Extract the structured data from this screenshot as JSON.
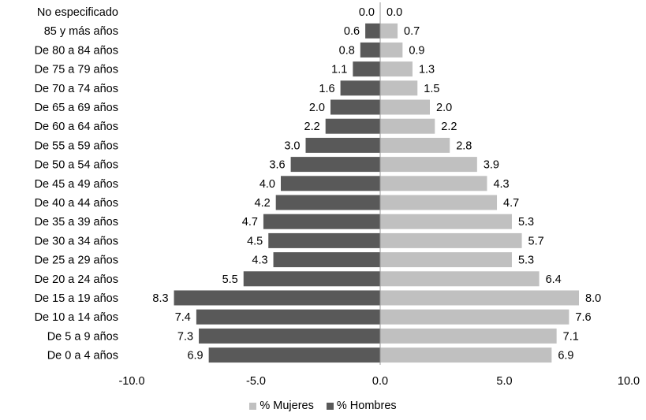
{
  "chart_data": {
    "type": "bar",
    "orientation": "horizontal",
    "categories": [
      "No especificado",
      "85 y más años",
      "De 80 a 84 años",
      "De 75 a 79 años",
      "De 70 a 74 años",
      "De 65 a 69 años",
      "De 60 a 64 años",
      "De 55 a 59 años",
      "De 50 a 54 años",
      "De 45 a 49 años",
      "De 40 a 44 años",
      "De 35 a 39 años",
      "De 30 a 34 años",
      "De 25 a 29 años",
      "De 20 a 24 años",
      "De 15 a 19 años",
      "De 10 a 14 años",
      "De 5 a 9 años",
      "De 0 a 4 años"
    ],
    "series": [
      {
        "name": "% Mujeres",
        "color": "#c0c0c0",
        "values": [
          0.0,
          0.7,
          0.9,
          1.3,
          1.5,
          2.0,
          2.2,
          2.8,
          3.9,
          4.3,
          4.7,
          5.3,
          5.7,
          5.3,
          6.4,
          8.0,
          7.6,
          7.1,
          6.9
        ],
        "labels": [
          "0.0",
          "0.7",
          "0.9",
          "1.3",
          "1.5",
          "2.0",
          "2.2",
          "2.8",
          "3.9",
          "4.3",
          "4.7",
          "5.3",
          "5.7",
          "5.3",
          "6.4",
          "8.0",
          "7.6",
          "7.1",
          "6.9"
        ]
      },
      {
        "name": "% Hombres",
        "color": "#595959",
        "values": [
          0.0,
          0.6,
          0.8,
          1.1,
          1.6,
          2.0,
          2.2,
          3.0,
          3.6,
          4.0,
          4.2,
          4.7,
          4.5,
          4.3,
          5.5,
          8.3,
          7.4,
          7.3,
          6.9
        ],
        "labels": [
          "0.0",
          "0.6",
          "0.8",
          "1.1",
          "1.6",
          "2.0",
          "2.2",
          "3.0",
          "3.6",
          "4.0",
          "4.2",
          "4.7",
          "4.5",
          "4.3",
          "5.5",
          "8.3",
          "7.4",
          "7.3",
          "6.9"
        ]
      }
    ],
    "xlim": [
      -10,
      10
    ],
    "xticks": [
      {
        "value": -10,
        "label": "-10.0"
      },
      {
        "value": -5,
        "label": "-5.0"
      },
      {
        "value": 0,
        "label": "0.0"
      },
      {
        "value": 5,
        "label": "5.0"
      },
      {
        "value": 10,
        "label": "10.0"
      }
    ],
    "legend_position": "bottom",
    "grid": false
  }
}
